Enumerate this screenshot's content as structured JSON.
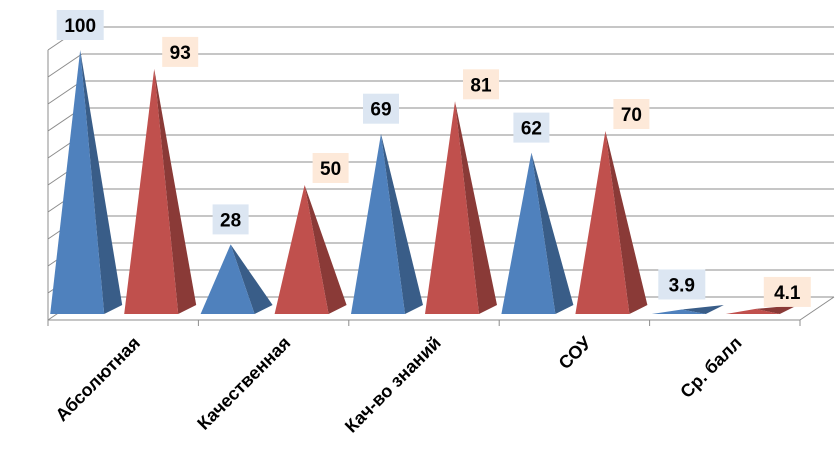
{
  "chart_data": {
    "type": "bar",
    "style": "3d-pyramid",
    "categories": [
      "Абсолютная",
      "Качественная",
      "Кач-во знаний",
      "СОУ",
      "Ср. балл"
    ],
    "series": [
      {
        "values": [
          100,
          28,
          69,
          62,
          3.9
        ],
        "color": "#4f81bd",
        "label_bg": "#dce6f2"
      },
      {
        "values": [
          93,
          50,
          81,
          70,
          4.1
        ],
        "color": "#c0504d",
        "label_bg": "#fde9d9"
      }
    ],
    "ylim": [
      0,
      100
    ],
    "grid": true,
    "legend": "none"
  }
}
